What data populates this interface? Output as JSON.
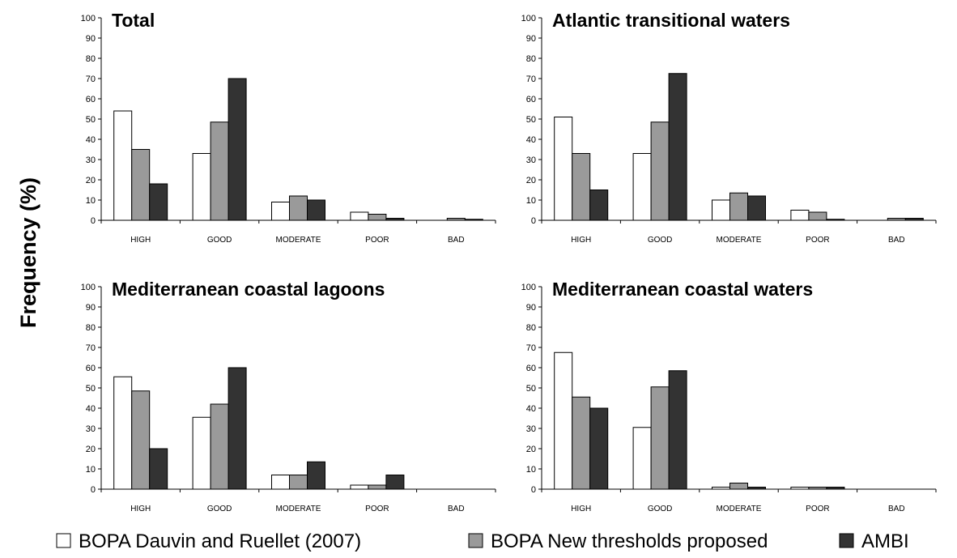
{
  "ylabel": "Frequency (%)",
  "colors": {
    "s0": "#ffffff",
    "s1": "#9a9a9a",
    "s2": "#333333",
    "stroke": "#000000"
  },
  "legend": [
    {
      "name": "BOPA Dauvin and Ruellet (2007)"
    },
    {
      "name": "BOPA New thresholds proposed"
    },
    {
      "name": "AMBI"
    }
  ],
  "chart_data": [
    {
      "type": "bar",
      "title": "Total",
      "categories": [
        "HIGH",
        "GOOD",
        "MODERATE",
        "POOR",
        "BAD"
      ],
      "ylim": [
        0,
        100
      ],
      "yticks": [
        0,
        10,
        20,
        30,
        40,
        50,
        60,
        70,
        80,
        90,
        100
      ],
      "series": [
        {
          "name": "BOPA Dauvin and Ruellet (2007)",
          "values": [
            54,
            33,
            9,
            4,
            0
          ]
        },
        {
          "name": "BOPA New thresholds proposed",
          "values": [
            35,
            48.5,
            12,
            3,
            1
          ]
        },
        {
          "name": "AMBI",
          "values": [
            18,
            70,
            10,
            1,
            0.5
          ]
        }
      ]
    },
    {
      "type": "bar",
      "title": "Atlantic transitional waters",
      "categories": [
        "HIGH",
        "GOOD",
        "MODERATE",
        "POOR",
        "BAD"
      ],
      "ylim": [
        0,
        100
      ],
      "yticks": [
        0,
        10,
        20,
        30,
        40,
        50,
        60,
        70,
        80,
        90,
        100
      ],
      "series": [
        {
          "name": "BOPA Dauvin and Ruellet (2007)",
          "values": [
            51,
            33,
            10,
            5,
            0
          ]
        },
        {
          "name": "BOPA New thresholds proposed",
          "values": [
            33,
            48.5,
            13.5,
            4,
            1
          ]
        },
        {
          "name": "AMBI",
          "values": [
            15,
            72.5,
            12,
            0.5,
            1
          ]
        }
      ]
    },
    {
      "type": "bar",
      "title": "Mediterranean coastal lagoons",
      "categories": [
        "HIGH",
        "GOOD",
        "MODERATE",
        "POOR",
        "BAD"
      ],
      "ylim": [
        0,
        100
      ],
      "yticks": [
        0,
        10,
        20,
        30,
        40,
        50,
        60,
        70,
        80,
        90,
        100
      ],
      "series": [
        {
          "name": "BOPA Dauvin and Ruellet (2007)",
          "values": [
            55.5,
            35.5,
            7,
            2,
            0
          ]
        },
        {
          "name": "BOPA New thresholds proposed",
          "values": [
            48.5,
            42,
            7,
            2,
            0
          ]
        },
        {
          "name": "AMBI",
          "values": [
            20,
            60,
            13.5,
            7,
            0
          ]
        }
      ]
    },
    {
      "type": "bar",
      "title": "Mediterranean coastal waters",
      "categories": [
        "HIGH",
        "GOOD",
        "MODERATE",
        "POOR",
        "BAD"
      ],
      "ylim": [
        0,
        100
      ],
      "yticks": [
        0,
        10,
        20,
        30,
        40,
        50,
        60,
        70,
        80,
        90,
        100
      ],
      "series": [
        {
          "name": "BOPA Dauvin and Ruellet (2007)",
          "values": [
            67.5,
            30.5,
            1,
            1,
            0
          ]
        },
        {
          "name": "BOPA New thresholds proposed",
          "values": [
            45.5,
            50.5,
            3,
            1,
            0
          ]
        },
        {
          "name": "AMBI",
          "values": [
            40,
            58.5,
            1,
            1,
            0
          ]
        }
      ]
    }
  ]
}
